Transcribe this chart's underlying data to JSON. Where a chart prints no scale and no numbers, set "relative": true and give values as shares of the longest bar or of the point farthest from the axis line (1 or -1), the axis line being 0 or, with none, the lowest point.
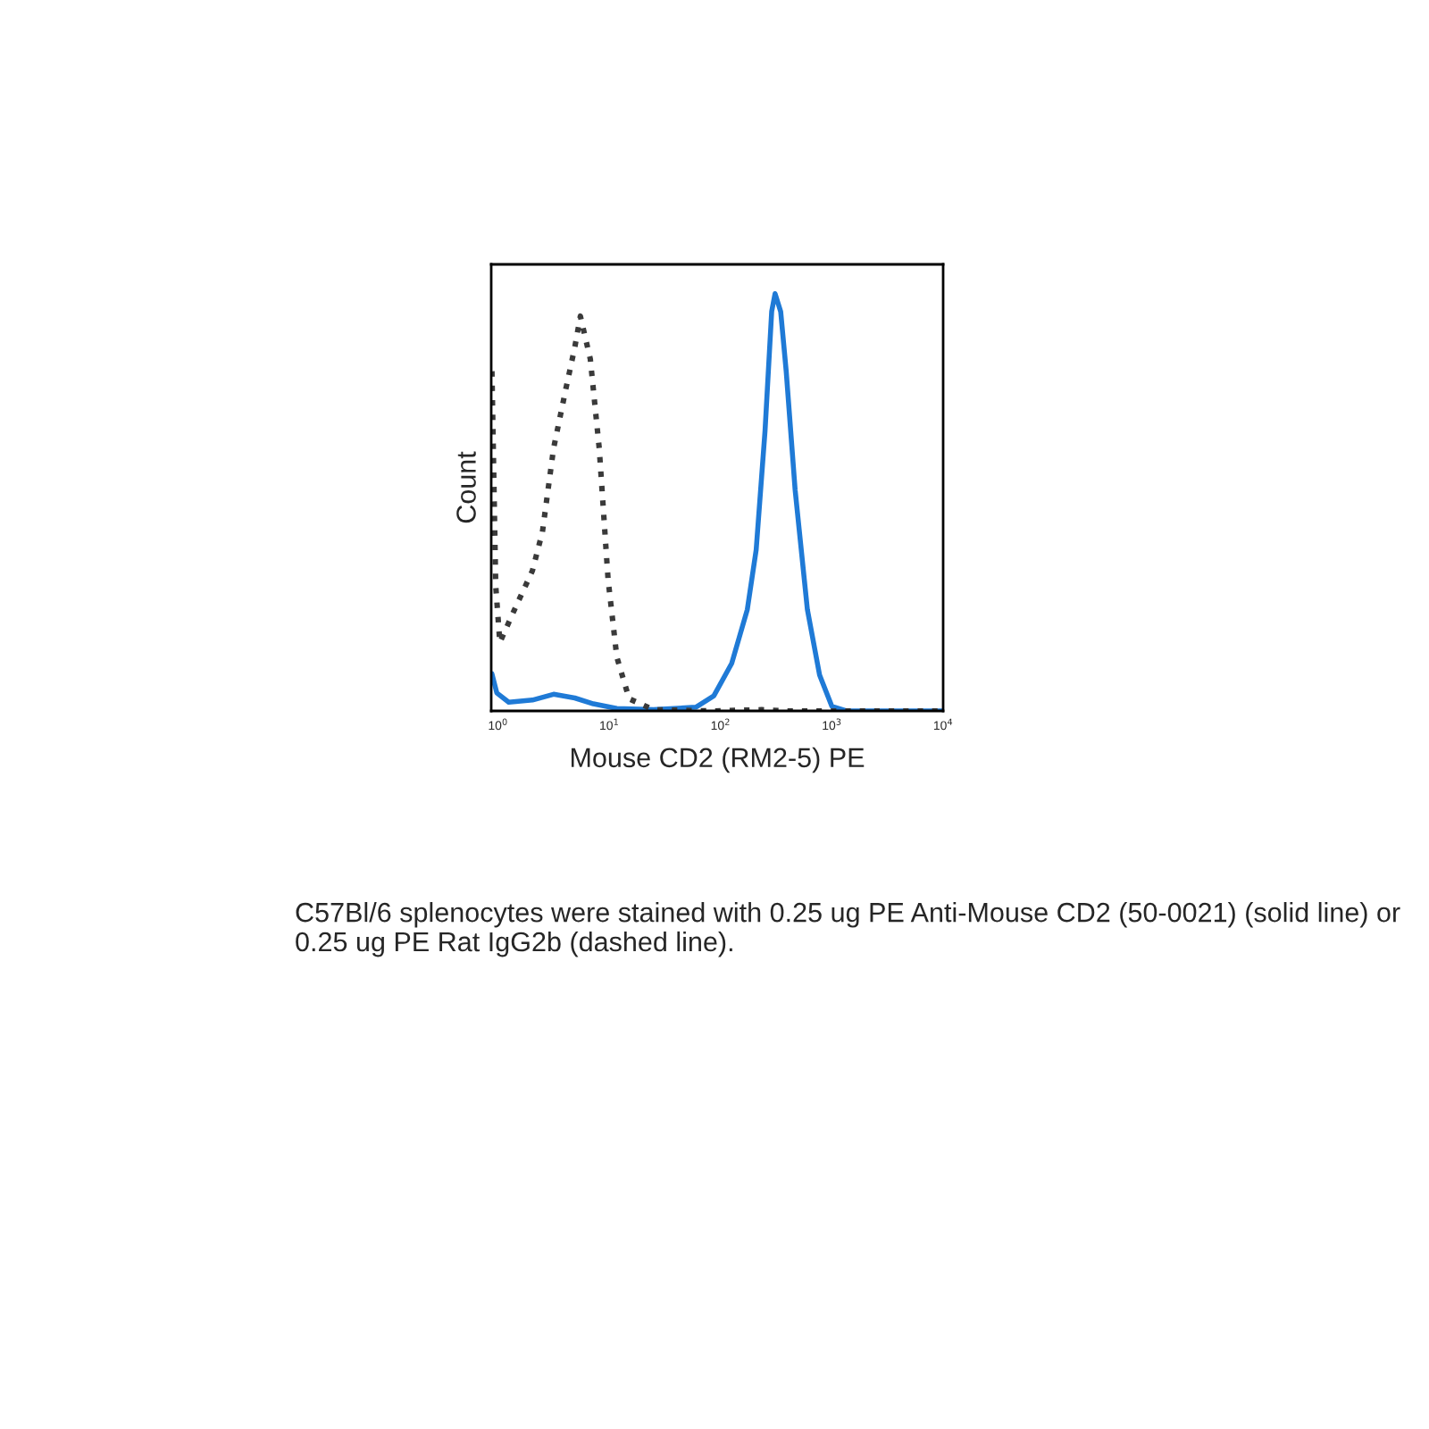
{
  "chart_data": {
    "type": "line",
    "xlabel": "Mouse CD2 (RM2-5) PE",
    "ylabel": "Count",
    "log": "x",
    "relative": true,
    "grid": false,
    "xlim": [
      0.87,
      10000
    ],
    "xticks": [
      {
        "value": 1,
        "label": "10$^{0}$"
      },
      {
        "value": 10,
        "label": "10$^{1}$"
      },
      {
        "value": 100,
        "label": "10$^{2}$"
      },
      {
        "value": 1000,
        "label": "10$^{3}$"
      },
      {
        "value": 10000,
        "label": "10$^{4}$"
      }
    ],
    "series": [
      {
        "color": "#1f7ad6",
        "line_style": "solid",
        "x": [
          0.883,
          0.977,
          1.25,
          2.04,
          3.16,
          4.9,
          7.2,
          11.7,
          25,
          60,
          87,
          126,
          174,
          209,
          251,
          288,
          309,
          347,
          389,
          468,
          603,
          776,
          1000,
          1350,
          10000
        ],
        "values": [
          0.089,
          0.043,
          0.021,
          0.026,
          0.04,
          0.031,
          0.017,
          0.006,
          0.003,
          0.009,
          0.036,
          0.114,
          0.243,
          0.386,
          0.671,
          0.957,
          1.0,
          0.957,
          0.814,
          0.529,
          0.243,
          0.086,
          0.011,
          0,
          0
        ]
      },
      {
        "color": "#3a3a3a",
        "line_style": "dotted",
        "x": [
          0.883,
          0.955,
          1.04,
          1.41,
          2.04,
          2.51,
          3.16,
          4.07,
          4.9,
          5.5,
          6.76,
          8.13,
          9.77,
          11.7,
          15.1,
          25,
          87,
          234,
          389,
          10000
        ],
        "values": [
          0.814,
          0.3,
          0.164,
          0.243,
          0.336,
          0.429,
          0.629,
          0.771,
          0.871,
          0.946,
          0.843,
          0.629,
          0.314,
          0.129,
          0.029,
          0.003,
          0,
          0.003,
          0,
          0
        ]
      }
    ],
    "annotations": [
      "C57Bl/6 splenocytes were stained with 0.25 ug PE Anti-Mouse CD2 (50-0021) (solid line) or 0.25 ug PE Rat IgG2b (dashed line)."
    ]
  }
}
